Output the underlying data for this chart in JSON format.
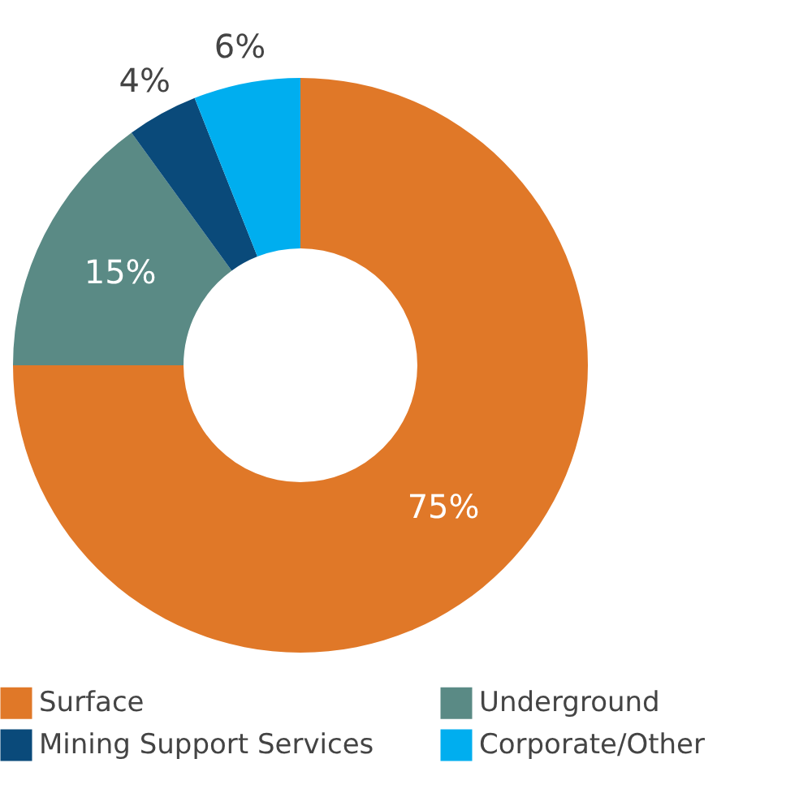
{
  "chart_data": {
    "type": "donut",
    "categories": [
      "Surface",
      "Underground",
      "Mining Support Services",
      "Corporate/Other"
    ],
    "values": [
      75,
      15,
      4,
      6
    ],
    "value_labels": [
      "75%",
      "15%",
      "4%",
      "6%"
    ],
    "colors": [
      "#e07828",
      "#5a8a85",
      "#0a4a7a",
      "#00aeef"
    ],
    "legend": "bottom"
  }
}
